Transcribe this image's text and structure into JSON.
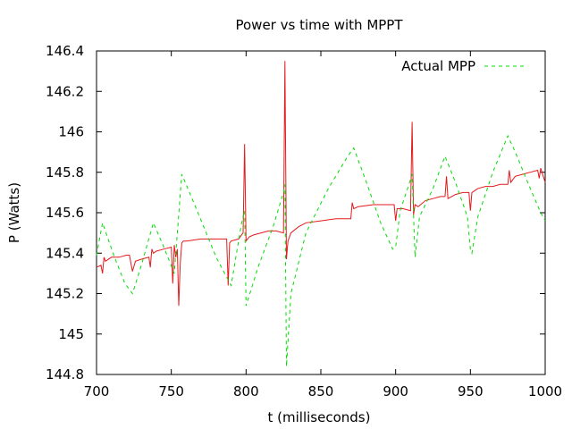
{
  "chart_data": {
    "type": "line",
    "title": "Power vs time with MPPT",
    "xlabel": "t (milliseconds)",
    "ylabel": "P (Watts)",
    "xlim": [
      700,
      1000
    ],
    "ylim": [
      144.8,
      146.4
    ],
    "xticks": [
      700,
      750,
      800,
      850,
      900,
      950,
      1000
    ],
    "yticks": [
      144.8,
      145,
      145.2,
      145.4,
      145.6,
      145.8,
      146,
      146.2,
      146.4
    ],
    "xtick_labels": [
      "700",
      "750",
      "800",
      "850",
      "900",
      "950",
      "1000"
    ],
    "ytick_labels": [
      "144.8",
      "145",
      "145.2",
      "145.4",
      "145.6",
      "145.8",
      "146",
      "146.2",
      "146.4"
    ],
    "grid": false,
    "legend_position": "top-right",
    "series": [
      {
        "name": "",
        "color": "#e41a1c",
        "style": "solid",
        "x": [
          700,
          703,
          704,
          705,
          706,
          710,
          715,
          720,
          722,
          724,
          726,
          730,
          735,
          736,
          737,
          738,
          740,
          745,
          750,
          751,
          752,
          753,
          754,
          755,
          756,
          757,
          758,
          760,
          770,
          780,
          787,
          788,
          789,
          790,
          795,
          798,
          799,
          800,
          802,
          805,
          810,
          815,
          820,
          825,
          826,
          827,
          828,
          830,
          835,
          840,
          850,
          860,
          870,
          871,
          872,
          875,
          885,
          890,
          899,
          900,
          901,
          905,
          910,
          911,
          912,
          913,
          915,
          920,
          925,
          930,
          933,
          934,
          935,
          940,
          945,
          949,
          950,
          951,
          955,
          960,
          965,
          970,
          975,
          976,
          977,
          980,
          985,
          990,
          995,
          996,
          997,
          1000
        ],
        "y": [
          145.33,
          145.34,
          145.3,
          145.38,
          145.36,
          145.38,
          145.38,
          145.39,
          145.39,
          145.31,
          145.36,
          145.37,
          145.38,
          145.33,
          145.42,
          145.4,
          145.41,
          145.42,
          145.43,
          145.25,
          145.44,
          145.38,
          145.42,
          145.14,
          145.35,
          145.45,
          145.46,
          145.46,
          145.47,
          145.47,
          145.47,
          145.24,
          145.45,
          145.46,
          145.47,
          145.5,
          145.94,
          145.46,
          145.48,
          145.49,
          145.5,
          145.51,
          145.51,
          145.5,
          146.35,
          145.37,
          145.46,
          145.5,
          145.53,
          145.55,
          145.56,
          145.57,
          145.57,
          145.65,
          145.62,
          145.63,
          145.64,
          145.64,
          145.64,
          145.56,
          145.62,
          145.62,
          145.61,
          146.05,
          145.59,
          145.64,
          145.63,
          145.66,
          145.67,
          145.68,
          145.68,
          145.78,
          145.67,
          145.69,
          145.7,
          145.7,
          145.61,
          145.7,
          145.72,
          145.73,
          145.73,
          145.74,
          145.74,
          145.81,
          145.75,
          145.78,
          145.79,
          145.8,
          145.81,
          145.77,
          145.82,
          145.75
        ]
      },
      {
        "name": "Actual MPP",
        "color": "#00dd00",
        "style": "dashed",
        "x": [
          700,
          704,
          712,
          719,
          724,
          730,
          738,
          745,
          752,
          757,
          765,
          780,
          790,
          797,
          799,
          800,
          808,
          818,
          825,
          826,
          827,
          830,
          840,
          855,
          868,
          872,
          880,
          890,
          898,
          900,
          903,
          908,
          911,
          913,
          916,
          925,
          933,
          940,
          948,
          950,
          951,
          955,
          965,
          975,
          980,
          990,
          997,
          1000
        ],
        "y": [
          145.39,
          145.55,
          145.38,
          145.25,
          145.2,
          145.34,
          145.55,
          145.43,
          145.3,
          145.79,
          145.65,
          145.38,
          145.24,
          145.55,
          145.61,
          145.14,
          145.33,
          145.53,
          145.7,
          145.74,
          144.84,
          145.2,
          145.5,
          145.72,
          145.88,
          145.92,
          145.76,
          145.55,
          145.42,
          145.43,
          145.61,
          145.72,
          145.79,
          145.38,
          145.58,
          145.72,
          145.88,
          145.75,
          145.58,
          145.42,
          145.4,
          145.58,
          145.8,
          145.98,
          145.9,
          145.72,
          145.6,
          145.56
        ]
      }
    ]
  }
}
